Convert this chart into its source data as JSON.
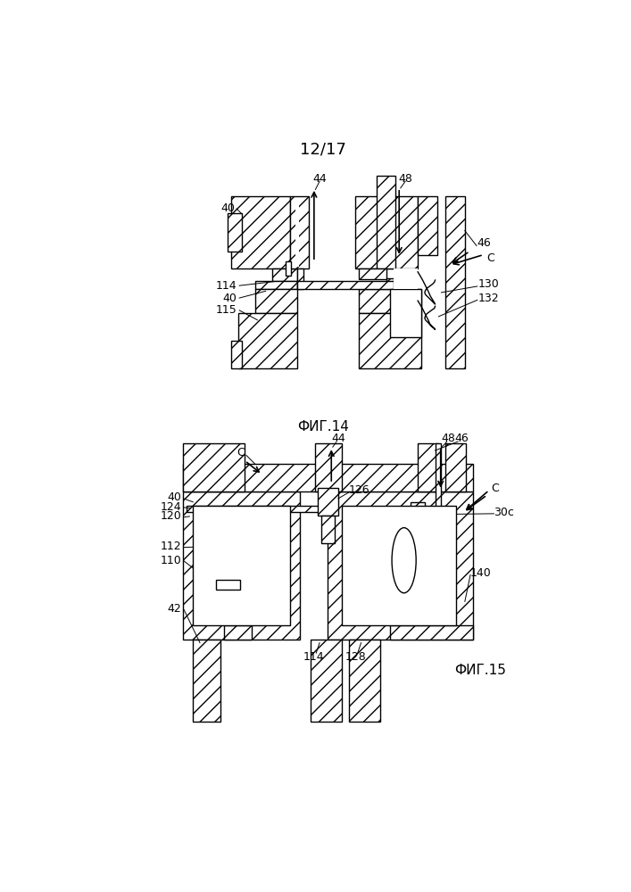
{
  "title": "12/17",
  "fig14_label": "ФИГ.14",
  "fig15_label": "ФИГ.15",
  "bg_color": "#ffffff",
  "line_color": "#000000"
}
